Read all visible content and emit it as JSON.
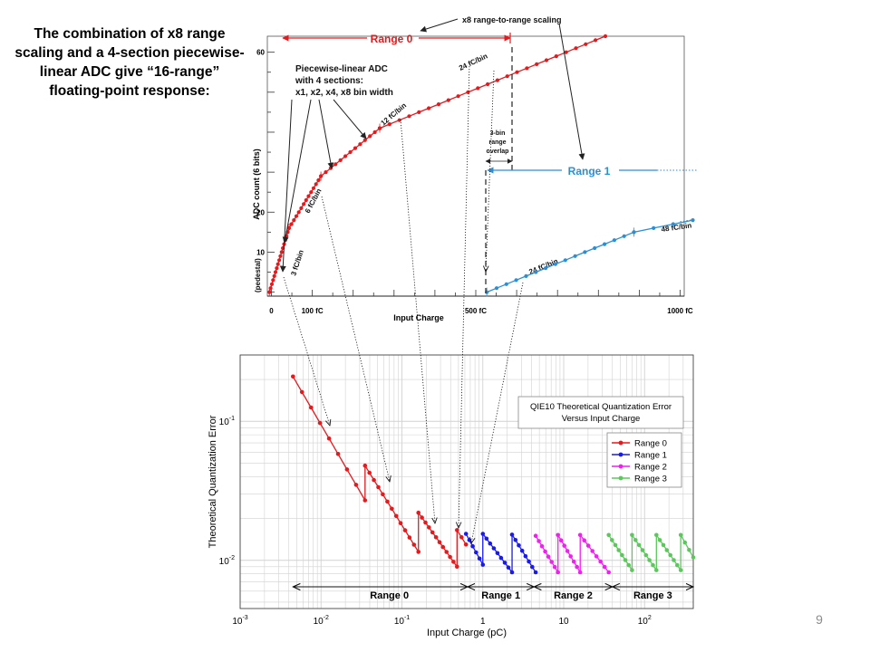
{
  "slide": {
    "intro_text": "The combination of x8 range scaling and a 4-section piecewise-linear ADC give “16-range” floating-point response:",
    "page_number": "9"
  },
  "colors": {
    "range0": "#e8191c",
    "range1_top": "#2b8fd6",
    "range1": "#1a1af0",
    "range2": "#f020f0",
    "range3": "#5cc85c",
    "grid": "#d2d2d2"
  },
  "chart_data": [
    {
      "type": "line",
      "xlabel": "Input Charge",
      "ylabel": "ADC count (6 bits)",
      "x_tick_labels": [
        "0",
        "100 fC",
        "500 fC",
        "1000 fC"
      ],
      "y_tick_labels": [
        "10",
        "20",
        "60"
      ],
      "pedestal_label": "(pedestal)",
      "xlim": [
        -10,
        1010
      ],
      "ylim": [
        -1,
        64
      ],
      "annotations": {
        "scaling": "x8 range-to-range scaling",
        "range0": "Range 0",
        "range1": "Range 1",
        "adc_box": [
          "Piecewise-linear ADC",
          "with 4 sections:",
          "x1, x2, x4, x8 bin width"
        ],
        "overlap": [
          "3-bin",
          "range",
          "overlap"
        ],
        "bin3": "3 fC/bin",
        "bin6": "6 fC/bin",
        "bin12": "12 fC/bin",
        "bin24a": "24 fC/bin",
        "bin24b": "24 fC/bin",
        "bin48": "48 fC/bin"
      },
      "series": [
        {
          "name": "Range 0",
          "segments": [
            {
              "bin_fc": 3,
              "x_start": -5,
              "y_start": 0,
              "bins": 16
            },
            {
              "bin_fc": 6,
              "x_start": 43,
              "y_start": 16,
              "bins": 13
            },
            {
              "bin_fc": 12,
              "x_start": 121,
              "y_start": 29,
              "bins": 12
            },
            {
              "bin_fc": 24,
              "x_start": 265,
              "y_start": 41,
              "bins": 23
            }
          ]
        },
        {
          "name": "Range 1",
          "segments": [
            {
              "bin_fc": 24,
              "x_start": 527,
              "y_start": 0,
              "bins": 15
            },
            {
              "bin_fc": 48,
              "x_start": 887,
              "y_start": 15,
              "bins": 3
            }
          ]
        }
      ]
    },
    {
      "type": "scatter",
      "xlabel": "Input Charge (pC)",
      "ylabel": "Theoretical Quantization Error",
      "x_scale": "log",
      "y_scale": "log",
      "xlim": [
        0.001,
        400
      ],
      "ylim": [
        0.0045,
        0.3
      ],
      "x_ticks": [
        0.001,
        0.01,
        0.1,
        1,
        10,
        100
      ],
      "x_tick_labels": [
        [
          "10",
          "-3"
        ],
        [
          "10",
          "-2"
        ],
        [
          "10",
          "-1"
        ],
        [
          "1",
          ""
        ],
        [
          "10",
          ""
        ],
        [
          "10",
          "2"
        ]
      ],
      "y_ticks": [
        0.01,
        0.1
      ],
      "y_tick_labels": [
        [
          "10",
          "-2"
        ],
        [
          "10",
          "-1"
        ]
      ],
      "legend_title": [
        "QIE10 Theoretical Quantization Error",
        "Versus Input Charge"
      ],
      "legend_position": "top-right",
      "grid": true,
      "series": [
        {
          "name": "Range 0",
          "segments": [
            {
              "x_start": 0.0045,
              "x_end": 0.035,
              "y_start": 0.21,
              "y_end": 0.027,
              "points": 9
            },
            {
              "x_start": 0.035,
              "x_end": 0.16,
              "y_start": 0.048,
              "y_end": 0.0115,
              "points": 13
            },
            {
              "x_start": 0.16,
              "x_end": 0.48,
              "y_start": 0.022,
              "y_end": 0.009,
              "points": 12
            },
            {
              "x_start": 0.48,
              "x_end": 0.62,
              "y_start": 0.0165,
              "y_end": 0.013,
              "points": 3
            }
          ]
        },
        {
          "name": "Range 1",
          "segments": [
            {
              "x_start": 0.62,
              "x_end": 1.0,
              "y_start": 0.0155,
              "y_end": 0.0093,
              "points": 6
            },
            {
              "x_start": 1.0,
              "x_end": 2.3,
              "y_start": 0.0155,
              "y_end": 0.0082,
              "points": 9
            },
            {
              "x_start": 2.3,
              "x_end": 4.5,
              "y_start": 0.0153,
              "y_end": 0.0082,
              "points": 8
            }
          ]
        },
        {
          "name": "Range 2",
          "segments": [
            {
              "x_start": 4.5,
              "x_end": 8.5,
              "y_start": 0.015,
              "y_end": 0.0082,
              "points": 8
            },
            {
              "x_start": 8.5,
              "x_end": 16,
              "y_start": 0.0152,
              "y_end": 0.0082,
              "points": 8
            },
            {
              "x_start": 16,
              "x_end": 36,
              "y_start": 0.0152,
              "y_end": 0.0082,
              "points": 8
            }
          ]
        },
        {
          "name": "Range 3",
          "segments": [
            {
              "x_start": 36,
              "x_end": 70,
              "y_start": 0.0152,
              "y_end": 0.0085,
              "points": 8
            },
            {
              "x_start": 70,
              "x_end": 140,
              "y_start": 0.0152,
              "y_end": 0.0085,
              "points": 8
            },
            {
              "x_start": 140,
              "x_end": 280,
              "y_start": 0.0152,
              "y_end": 0.0085,
              "points": 8
            },
            {
              "x_start": 280,
              "x_end": 400,
              "y_start": 0.0152,
              "y_end": 0.0105,
              "points": 4
            }
          ]
        }
      ],
      "range_markers": [
        {
          "label": "Range 0",
          "x_start": 0.0045,
          "x_end": 0.65
        },
        {
          "label": "Range 1",
          "x_start": 0.65,
          "x_end": 4.3
        },
        {
          "label": "Range 2",
          "x_start": 4.3,
          "x_end": 40
        },
        {
          "label": "Range 3",
          "x_start": 40,
          "x_end": 400
        }
      ]
    }
  ]
}
